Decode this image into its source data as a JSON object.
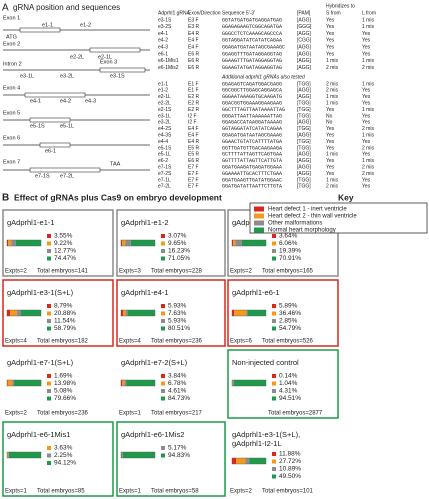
{
  "panel_a": {
    "letter": "A",
    "title": "gRNA position and sequences",
    "diagram_labels": [
      "Exon 1",
      "ATG",
      "e1-1",
      "e1-2",
      "Exon 2",
      "e2-1L",
      "e2-2L",
      "Intron 2",
      "e3-1L",
      "e3-2L",
      "Exon 3",
      "e3-1S",
      "Exon 4",
      "e4-1",
      "e4-2",
      "e4-3",
      "Exon 5",
      "e5-1S",
      "e5-1L",
      "Exon 6",
      "e6-1",
      "Exon 7",
      "e7-1S",
      "e7-2L",
      "TAA"
    ],
    "table": {
      "header": [
        "Adprhl1 gRNA",
        "Exon/Direction",
        "Sequence 5'-3'",
        "[PAM]",
        "Hybridizes to",
        "S from",
        "L from"
      ],
      "rows": [
        [
          "e3-1S",
          "E3 F",
          "GGTATGATGATGAGGATGAG",
          "[AGG]",
          "Yes",
          "1 mis"
        ],
        [
          "e3-2S",
          "E3 R",
          "GGAGAGAAGTCGGCAGATGA",
          "[GGG]",
          "Yes",
          "1 mis"
        ],
        [
          "e4-1",
          "E4 R",
          "GGGCCTCTCAAAGCAGCCCA",
          "[AGG]",
          "Yes",
          "Yes"
        ],
        [
          "e4-2",
          "E4 F",
          "GGTAGGATATCATATCAGAA",
          "[CGG]",
          "Yes",
          "Yes"
        ],
        [
          "e4-3",
          "E4 F",
          "GGAGATGATAATAGCGAAAGC",
          "[AGG]",
          "Yes",
          "Yes"
        ],
        [
          "e6-1",
          "E6 R",
          "GGAGGTTTGATAGGAGGTAG",
          "[AGG]",
          "Yes",
          "Yes"
        ],
        [
          "e6-1Mis1",
          "E6 R",
          "GGAAGTTTGATAGGAGGTAG",
          "[AGG]",
          "1 mis",
          "1 mis"
        ],
        [
          "e6-1Mis2",
          "E6 R",
          "GGAAGTATGATAGGAGGTAG",
          "[AGG]",
          "2 mis",
          "2 mis"
        ]
      ],
      "note": "Additional adprhl1 gRNAs also tested",
      "extra_rows": [
        [
          "e1-1",
          "E1 F",
          "GGAGAGTCAGATGGACGAGG",
          "[TGG]",
          "2 mis",
          "1 mis"
        ],
        [
          "e1-2",
          "E1 F",
          "GGCGGCTTGGAGCAGGAGCA",
          "[AGG]",
          "2 mis",
          "Yes"
        ],
        [
          "e2-1L",
          "E2 R",
          "GGGAATAAAGGTGCAAGATG",
          "[AGG]",
          "1 mis",
          "Yes"
        ],
        [
          "e2-2L",
          "E2 R",
          "GGACGGTGGAAAGGAAGAAG",
          "[TGG]",
          "1 mis",
          "Yes"
        ],
        [
          "e2-1S",
          "E2 R",
          "GGCTTTAGTTAATAAAATTAG",
          "[TGG]",
          "Yes",
          "1 mis"
        ],
        [
          "e3-1L",
          "I2 F",
          "GGGATTAATTAAAAAATTAG",
          "[TGG]",
          "No",
          "Yes"
        ],
        [
          "e3-2L",
          "I2 F",
          "GGAGACCATAAGGATAAAAG",
          "[AGG]",
          "No",
          "Yes"
        ],
        [
          "e4-2S",
          "E4 F",
          "GGTAGGATATCATATCAGAA",
          "[TGG]",
          "Yes",
          "2 mis"
        ],
        [
          "e4-3S",
          "E4 F",
          "GGAGATGATAATAGCGAAAG",
          "[AGG]",
          "Yes",
          "1 mis"
        ],
        [
          "e4-4",
          "E4 R",
          "GGAACTGTATCATTTTATGA",
          "[TGG]",
          "Yes",
          "Yes"
        ],
        [
          "e5-1S",
          "E5 R",
          "GGTTGATGTTGACAAGAAGA",
          "[TGG]",
          "Yes",
          "2 mis"
        ],
        [
          "e5-1L",
          "E5 R",
          "GCTTTTATTAGTTCAGTGAA",
          "[AGG]",
          "1 mis",
          "Yes"
        ],
        [
          "e6-2",
          "E6 R",
          "GGTTTTATTAGTTCATTGTA",
          "[AGG]",
          "Yes",
          "1 mis"
        ],
        [
          "e7-1S",
          "E7 F",
          "GGATGAAGATGAGATGGAAA",
          "[AGG]",
          "Yes",
          "2 mis"
        ],
        [
          "e7-2S",
          "E7 F",
          "GGAAAATTGCACTTTCTGAA",
          "[AGG]",
          "Yes",
          "2 mis"
        ],
        [
          "e7-1L",
          "E7 F",
          "GGATGAAGTTGATATGGAAC",
          "[TGG]",
          "1 mis",
          "Yes"
        ],
        [
          "e7-2L",
          "E7 F",
          "GGATGATATTAATTCTTGTA",
          "[TGG]",
          "2 mis",
          "Yes"
        ]
      ]
    }
  },
  "panel_b": {
    "letter": "B",
    "title": "Effect of gRNAs plus Cas9 on embryo development",
    "key_title": "Key",
    "key": [
      {
        "label": "Heart defect 1 - inert ventricle",
        "color": "#d7281e"
      },
      {
        "label": "Heart defect 2 - thin wall ventricle",
        "color": "#f39a1e"
      },
      {
        "label": "Other malformations",
        "color": "#8c8c8c"
      },
      {
        "label": "Normal heart morphology",
        "color": "#1e9a4a"
      }
    ],
    "panels": [
      {
        "title": "gAdprhl1-e1-1",
        "values": [
          3.55,
          9.22,
          12.77,
          74.47
        ],
        "value_labels": [
          "3.55%",
          "9.22%",
          "12.77%",
          "74.47%"
        ],
        "expts": "Expts=2",
        "total": "Total embryos=141",
        "border": "#8c8c8c"
      },
      {
        "title": "gAdprhl1-e1-2",
        "values": [
          3.07,
          9.65,
          16.23,
          71.05
        ],
        "value_labels": [
          "3.07%",
          "9.65%",
          "16.23%",
          "71.05%"
        ],
        "expts": "Expts=3",
        "total": "Total embryos=228",
        "border": "#8c8c8c"
      },
      {
        "title": "gAdprhl1-e2-1",
        "values": [
          3.64,
          6.06,
          19.39,
          70.91
        ],
        "value_labels": [
          "3.64%",
          "6.06%",
          "19.39%",
          "70.91%"
        ],
        "expts": "Expts=2",
        "total": "Total embryos=165",
        "border": "#8c8c8c"
      },
      {
        "title": "gAdprhl1-e3-1(S+L)",
        "values": [
          8.79,
          20.88,
          11.54,
          58.79
        ],
        "value_labels": [
          "8.79%",
          "20.88%",
          "11.54%",
          "58.79%"
        ],
        "expts": "Expts=4",
        "total": "Total embryos=182",
        "border": "#d7281e"
      },
      {
        "title": "gAdprhl1-e4-1",
        "values": [
          5.93,
          7.63,
          5.93,
          80.51
        ],
        "value_labels": [
          "5.93%",
          "7.63%",
          "5.93%",
          "80.51%"
        ],
        "expts": "Expts=4",
        "total": "Total embryos=236",
        "border": "#d7281e"
      },
      {
        "title": "gAdprhl1-e6-1",
        "values": [
          5.89,
          36.46,
          2.85,
          54.79
        ],
        "value_labels": [
          "5.89%",
          "36.46%",
          "2.85%",
          "54.79%"
        ],
        "expts": "Expts=6",
        "total": "Total embryos=526",
        "border": "#d7281e"
      },
      {
        "title": "gAdprhl1-e7-1(S+L)",
        "values": [
          1.69,
          13.98,
          5.08,
          79.66
        ],
        "value_labels": [
          "1.69%",
          "13.98%",
          "5.08%",
          "79.66%"
        ],
        "expts": "Expts=2",
        "total": "Total embryos=236",
        "border": "#ffffff"
      },
      {
        "title": "gAdprhl1-e7-2(S+L)",
        "values": [
          3.84,
          6.78,
          4.61,
          84.73
        ],
        "value_labels": [
          "3.84%",
          "6.78%",
          "4.61%",
          "84.73%"
        ],
        "expts": "Expts=1",
        "total": "Total embryos=217",
        "border": "#ffffff"
      },
      {
        "title": "Non-injected control",
        "values": [
          0.14,
          1.04,
          4.31,
          94.51
        ],
        "value_labels": [
          "0.14%",
          "1.04%",
          "4.31%",
          "94.51%"
        ],
        "total": "Total embryos=2877",
        "border": "#1e9a4a"
      },
      {
        "title": "gAdprhl1-e6-1Mis1",
        "values": [
          null,
          3.63,
          2.25,
          94.12
        ],
        "value_labels": [
          null,
          "3.63%",
          "2.25%",
          "94.12%"
        ],
        "expts": "Expts=1",
        "total": "Total embryos=85",
        "border": "#1e9a4a"
      },
      {
        "title": "gAdprhl1-e6-1Mis2",
        "values": [
          null,
          null,
          5.17,
          94.83
        ],
        "value_labels": [
          null,
          null,
          "5.17%",
          "94.83%"
        ],
        "expts": "Expts=1",
        "total": "Total embryos=58",
        "border": "#1e9a4a"
      },
      {
        "title": "gAdprhl1-e3-1(S+L),",
        "title2": "gAdprhl1-I2-1L",
        "values": [
          11.88,
          27.72,
          10.89,
          49.5
        ],
        "value_labels": [
          "11.88%",
          "27.72%",
          "10.89%",
          "49.50%"
        ],
        "expts": "Expts=2",
        "total": "Total embryos=101",
        "border": "#ffffff"
      }
    ]
  }
}
